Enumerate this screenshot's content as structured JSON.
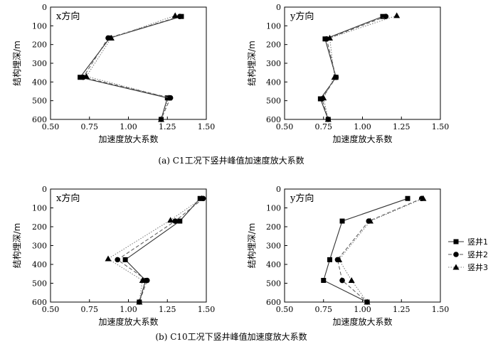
{
  "legend": [
    "竖井1",
    "竖井2",
    "竖井3"
  ],
  "captions": {
    "a": "(a) C1工况下竖井峰值加速度放大系数",
    "b": "(b) C10工况下竖井峰值加速度放大系数"
  },
  "chart_data": [
    {
      "type": "line",
      "group": "a",
      "panel_label": "x方向",
      "xlabel": "加速度放大系数",
      "ylabel": "结构埋深/m",
      "xlim": [
        0.5,
        1.5
      ],
      "ylim": [
        600,
        0
      ],
      "xticks": [
        "0.50",
        "0.75",
        "1.00",
        "1.25",
        "1.50"
      ],
      "yticks": [
        "0",
        "100",
        "200",
        "300",
        "400",
        "500",
        "600"
      ],
      "series": [
        {
          "name": "竖井1",
          "marker": "square",
          "x": [
            1.34,
            0.88,
            0.69,
            1.25,
            1.21
          ],
          "y": [
            50,
            165,
            375,
            485,
            600
          ]
        },
        {
          "name": "竖井2",
          "marker": "circle",
          "x": [
            1.33,
            0.87,
            0.71,
            1.27,
            1.21
          ],
          "y": [
            50,
            165,
            375,
            485,
            600
          ]
        },
        {
          "name": "竖井3",
          "marker": "triangle",
          "x": [
            1.3,
            0.89,
            0.73,
            1.26,
            1.21
          ],
          "y": [
            45,
            165,
            370,
            485,
            600
          ]
        }
      ]
    },
    {
      "type": "line",
      "group": "a",
      "panel_label": "y方向",
      "xlabel": "加速度放大系数",
      "ylabel": "结构埋深/m",
      "xlim": [
        0.5,
        1.5
      ],
      "ylim": [
        600,
        0
      ],
      "xticks": [
        "0.50",
        "0.75",
        "1.00",
        "1.25",
        "1.50"
      ],
      "yticks": [
        "0",
        "100",
        "200",
        "300",
        "400",
        "500",
        "600"
      ],
      "series": [
        {
          "name": "竖井1",
          "marker": "square",
          "x": [
            1.13,
            0.76,
            0.83,
            0.73,
            0.78
          ],
          "y": [
            50,
            170,
            375,
            490,
            600
          ]
        },
        {
          "name": "竖井2",
          "marker": "circle",
          "x": [
            1.15,
            0.77,
            0.83,
            0.74,
            0.78
          ],
          "y": [
            50,
            170,
            375,
            490,
            600
          ]
        },
        {
          "name": "竖井3",
          "marker": "triangle",
          "x": [
            1.22,
            0.79,
            0.82,
            0.75,
            0.78
          ],
          "y": [
            45,
            165,
            375,
            485,
            600
          ]
        }
      ]
    },
    {
      "type": "line",
      "group": "b",
      "panel_label": "x方向",
      "xlabel": "加速度放大系数",
      "ylabel": "结构埋深/m",
      "xlim": [
        0.5,
        1.5
      ],
      "ylim": [
        600,
        0
      ],
      "xticks": [
        "0.50",
        "0.75",
        "1.00",
        "1.25",
        "1.50"
      ],
      "yticks": [
        "0",
        "100",
        "200",
        "300",
        "400",
        "500",
        "600"
      ],
      "series": [
        {
          "name": "竖井1",
          "marker": "square",
          "x": [
            1.46,
            1.33,
            0.98,
            1.11,
            1.07
          ],
          "y": [
            50,
            170,
            375,
            485,
            600
          ]
        },
        {
          "name": "竖井2",
          "marker": "circle",
          "x": [
            1.48,
            1.3,
            0.93,
            1.12,
            1.07
          ],
          "y": [
            50,
            170,
            375,
            485,
            600
          ]
        },
        {
          "name": "竖井3",
          "marker": "triangle",
          "x": [
            1.47,
            1.27,
            0.87,
            1.09,
            1.07
          ],
          "y": [
            50,
            165,
            370,
            485,
            600
          ]
        }
      ]
    },
    {
      "type": "line",
      "group": "b",
      "panel_label": "y方向",
      "xlabel": "加速度放大系数",
      "ylabel": "结构埋深/m",
      "xlim": [
        0.5,
        1.5
      ],
      "ylim": [
        600,
        0
      ],
      "xticks": [
        "0.50",
        "0.75",
        "1.00",
        "1.25",
        "1.50"
      ],
      "yticks": [
        "0",
        "100",
        "200",
        "300",
        "400",
        "500",
        "600"
      ],
      "series": [
        {
          "name": "竖井1",
          "marker": "square",
          "x": [
            1.29,
            0.87,
            0.79,
            0.75,
            1.03
          ],
          "y": [
            50,
            170,
            375,
            485,
            600
          ]
        },
        {
          "name": "竖井2",
          "marker": "circle",
          "x": [
            1.38,
            1.04,
            0.84,
            0.87,
            1.03
          ],
          "y": [
            50,
            170,
            375,
            485,
            600
          ]
        },
        {
          "name": "竖井3",
          "marker": "triangle",
          "x": [
            1.39,
            1.05,
            0.85,
            0.93,
            1.03
          ],
          "y": [
            50,
            170,
            375,
            485,
            600
          ]
        }
      ]
    }
  ]
}
